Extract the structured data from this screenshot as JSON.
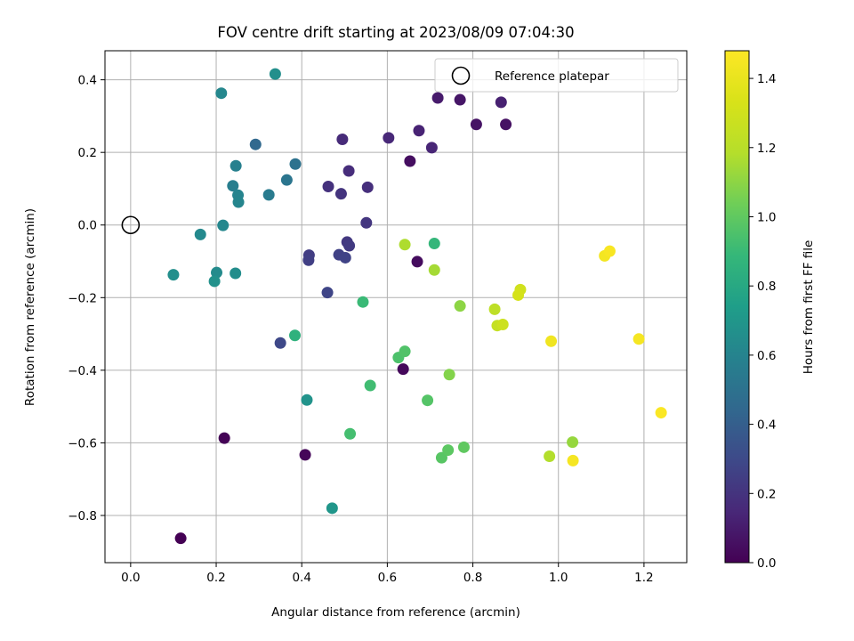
{
  "chart_data": {
    "type": "scatter",
    "title": "FOV centre drift starting at 2023/08/09 07:04:30",
    "xlabel": "Angular distance from reference (arcmin)",
    "ylabel": "Rotation from reference (arcmin)",
    "xlim": [
      -0.06,
      1.3
    ],
    "ylim": [
      -0.93,
      0.48
    ],
    "xticks": [
      "0.0",
      "0.2",
      "0.4",
      "0.6",
      "0.8",
      "1.0",
      "1.2"
    ],
    "xtick_values": [
      0,
      0.2,
      0.4,
      0.6,
      0.8,
      1.0,
      1.2
    ],
    "yticks": [
      "−0.8",
      "−0.6",
      "−0.4",
      "−0.2",
      "0.0",
      "0.2",
      "0.4"
    ],
    "ytick_values": [
      -0.8,
      -0.6,
      -0.4,
      -0.2,
      0,
      0.2,
      0.4
    ],
    "grid": true,
    "legend": {
      "placement": "upper right",
      "label": "Reference platepar",
      "marker": "open-circle"
    },
    "reference_point": {
      "x": 0.0,
      "y": 0.0
    },
    "colorbar": {
      "label": "Hours from first FF file",
      "colormap": "viridis",
      "range": [
        0.0,
        1.48
      ],
      "ticks": [
        "0.0",
        "0.2",
        "0.4",
        "0.6",
        "0.8",
        "1.0",
        "1.2",
        "1.4"
      ],
      "tick_values": [
        0,
        0.2,
        0.4,
        0.6,
        0.8,
        1.0,
        1.2,
        1.4
      ]
    },
    "points": [
      {
        "x": 0.117,
        "y": -0.863,
        "hours": 0.0
      },
      {
        "x": 0.219,
        "y": -0.587,
        "hours": 0.01
      },
      {
        "x": 0.408,
        "y": -0.633,
        "hours": 0.02
      },
      {
        "x": 0.637,
        "y": -0.397,
        "hours": 0.03
      },
      {
        "x": 0.67,
        "y": -0.101,
        "hours": 0.04
      },
      {
        "x": 0.653,
        "y": 0.176,
        "hours": 0.05
      },
      {
        "x": 0.877,
        "y": 0.277,
        "hours": 0.06
      },
      {
        "x": 0.808,
        "y": 0.277,
        "hours": 0.07
      },
      {
        "x": 0.77,
        "y": 0.345,
        "hours": 0.08
      },
      {
        "x": 0.718,
        "y": 0.35,
        "hours": 0.1
      },
      {
        "x": 0.866,
        "y": 0.338,
        "hours": 0.12
      },
      {
        "x": 0.674,
        "y": 0.26,
        "hours": 0.13
      },
      {
        "x": 0.704,
        "y": 0.213,
        "hours": 0.14
      },
      {
        "x": 0.603,
        "y": 0.24,
        "hours": 0.15
      },
      {
        "x": 0.495,
        "y": 0.236,
        "hours": 0.16
      },
      {
        "x": 0.51,
        "y": 0.149,
        "hours": 0.17
      },
      {
        "x": 0.554,
        "y": 0.104,
        "hours": 0.18
      },
      {
        "x": 0.462,
        "y": 0.106,
        "hours": 0.19
      },
      {
        "x": 0.492,
        "y": 0.086,
        "hours": 0.2
      },
      {
        "x": 0.551,
        "y": 0.006,
        "hours": 0.21
      },
      {
        "x": 0.506,
        "y": -0.047,
        "hours": 0.22
      },
      {
        "x": 0.511,
        "y": -0.057,
        "hours": 0.23
      },
      {
        "x": 0.417,
        "y": -0.083,
        "hours": 0.24
      },
      {
        "x": 0.416,
        "y": -0.097,
        "hours": 0.25
      },
      {
        "x": 0.487,
        "y": -0.082,
        "hours": 0.26
      },
      {
        "x": 0.502,
        "y": -0.09,
        "hours": 0.27
      },
      {
        "x": 0.46,
        "y": -0.186,
        "hours": 0.28
      },
      {
        "x": 0.35,
        "y": -0.325,
        "hours": 0.29
      },
      {
        "x": 0.292,
        "y": 0.222,
        "hours": 0.45
      },
      {
        "x": 0.385,
        "y": 0.168,
        "hours": 0.5
      },
      {
        "x": 0.365,
        "y": 0.124,
        "hours": 0.52
      },
      {
        "x": 0.323,
        "y": 0.083,
        "hours": 0.55
      },
      {
        "x": 0.239,
        "y": 0.108,
        "hours": 0.57
      },
      {
        "x": 0.246,
        "y": 0.163,
        "hours": 0.58
      },
      {
        "x": 0.251,
        "y": 0.082,
        "hours": 0.6
      },
      {
        "x": 0.252,
        "y": 0.063,
        "hours": 0.61
      },
      {
        "x": 0.216,
        "y": -0.001,
        "hours": 0.62
      },
      {
        "x": 0.163,
        "y": -0.026,
        "hours": 0.63
      },
      {
        "x": 0.201,
        "y": -0.131,
        "hours": 0.64
      },
      {
        "x": 0.245,
        "y": -0.133,
        "hours": 0.65
      },
      {
        "x": 0.1,
        "y": -0.137,
        "hours": 0.66
      },
      {
        "x": 0.196,
        "y": -0.155,
        "hours": 0.67
      },
      {
        "x": 0.212,
        "y": 0.363,
        "hours": 0.62
      },
      {
        "x": 0.338,
        "y": 0.416,
        "hours": 0.66
      },
      {
        "x": 0.412,
        "y": -0.482,
        "hours": 0.68
      },
      {
        "x": 0.471,
        "y": -0.78,
        "hours": 0.7
      },
      {
        "x": 0.384,
        "y": -0.304,
        "hours": 0.85
      },
      {
        "x": 0.543,
        "y": -0.212,
        "hours": 0.9
      },
      {
        "x": 0.71,
        "y": -0.051,
        "hours": 0.88
      },
      {
        "x": 0.56,
        "y": -0.442,
        "hours": 0.92
      },
      {
        "x": 0.513,
        "y": -0.575,
        "hours": 0.93
      },
      {
        "x": 0.626,
        "y": -0.365,
        "hours": 0.95
      },
      {
        "x": 0.641,
        "y": -0.348,
        "hours": 0.96
      },
      {
        "x": 0.694,
        "y": -0.483,
        "hours": 0.97
      },
      {
        "x": 0.727,
        "y": -0.641,
        "hours": 0.98
      },
      {
        "x": 0.742,
        "y": -0.62,
        "hours": 0.99
      },
      {
        "x": 0.779,
        "y": -0.612,
        "hours": 1.0
      },
      {
        "x": 0.745,
        "y": -0.412,
        "hours": 1.08
      },
      {
        "x": 0.77,
        "y": -0.223,
        "hours": 1.1
      },
      {
        "x": 0.71,
        "y": -0.124,
        "hours": 1.15
      },
      {
        "x": 0.641,
        "y": -0.054,
        "hours": 1.17
      },
      {
        "x": 1.033,
        "y": -0.598,
        "hours": 1.12
      },
      {
        "x": 0.979,
        "y": -0.637,
        "hours": 1.18
      },
      {
        "x": 0.851,
        "y": -0.232,
        "hours": 1.22
      },
      {
        "x": 0.857,
        "y": -0.277,
        "hours": 1.25
      },
      {
        "x": 0.87,
        "y": -0.274,
        "hours": 1.28
      },
      {
        "x": 0.911,
        "y": -0.178,
        "hours": 1.3
      },
      {
        "x": 0.906,
        "y": -0.193,
        "hours": 1.32
      },
      {
        "x": 0.983,
        "y": -0.32,
        "hours": 1.43
      },
      {
        "x": 1.034,
        "y": -0.649,
        "hours": 1.45
      },
      {
        "x": 1.108,
        "y": -0.085,
        "hours": 1.44
      },
      {
        "x": 1.12,
        "y": -0.072,
        "hours": 1.46
      },
      {
        "x": 1.188,
        "y": -0.314,
        "hours": 1.45
      },
      {
        "x": 1.24,
        "y": -0.517,
        "hours": 1.47
      }
    ]
  }
}
